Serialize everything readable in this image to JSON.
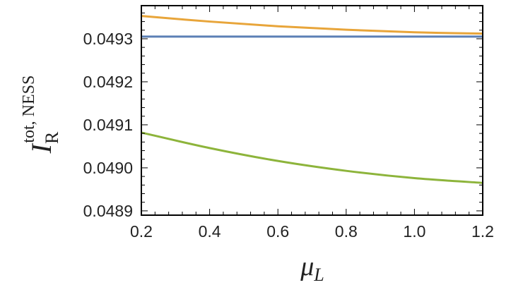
{
  "chart_data": {
    "type": "line",
    "title": "",
    "xlabel": {
      "main": "μ",
      "sub": "L"
    },
    "ylabel": {
      "main": "I",
      "sup": "tot, NESS",
      "sub": "R"
    },
    "xlim": [
      0.2,
      1.2
    ],
    "ylim": [
      0.04889,
      0.049377
    ],
    "xticks": [
      0.2,
      0.4,
      0.6,
      0.8,
      1.0,
      1.2
    ],
    "xtick_labels": [
      "0.2",
      "0.4",
      "0.6",
      "0.8",
      "1.0",
      "1.2"
    ],
    "yticks": [
      0.0489,
      0.049,
      0.0491,
      0.0492,
      0.0493
    ],
    "ytick_labels": [
      "0.0489",
      "0.0490",
      "0.0491",
      "0.0492",
      "0.0493"
    ],
    "grid": false,
    "series": [
      {
        "color": "#5b7fb5",
        "x": [
          0.2,
          0.4,
          0.6,
          0.8,
          1.0,
          1.2
        ],
        "y": [
          0.049305,
          0.049305,
          0.049305,
          0.049305,
          0.049305,
          0.049305
        ]
      },
      {
        "color": "#e8a53a",
        "x": [
          0.2,
          0.4,
          0.6,
          0.8,
          1.0,
          1.2
        ],
        "y": [
          0.049353,
          0.04934,
          0.049329,
          0.049321,
          0.049315,
          0.049312
        ]
      },
      {
        "color": "#8db43b",
        "x": [
          0.2,
          0.4,
          0.6,
          0.8,
          1.0,
          1.2
        ],
        "y": [
          0.049082,
          0.049046,
          0.049016,
          0.048993,
          0.048976,
          0.048965
        ]
      }
    ]
  }
}
